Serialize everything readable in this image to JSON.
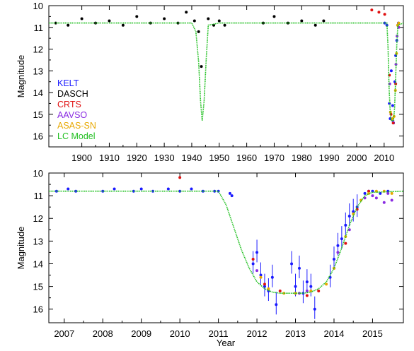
{
  "chart_data": [
    {
      "type": "scatter",
      "title": "",
      "xlabel": "",
      "ylabel": "Magnitude",
      "xlim": [
        1888,
        2017
      ],
      "ylim": [
        10,
        16.5
      ],
      "y_inverted": true,
      "xticks": [
        1900,
        1910,
        1920,
        1930,
        1940,
        1950,
        1960,
        1970,
        1980,
        1990,
        2000,
        2010
      ],
      "xtick_labels": [
        "1900",
        "1910",
        "1920",
        "1930",
        "1940",
        "1950",
        "1960",
        "1970",
        "1980",
        "1990",
        "2000",
        "2010"
      ],
      "yticks": [
        10,
        11,
        12,
        13,
        14,
        15,
        16
      ],
      "ytick_labels": [
        "10",
        "11",
        "12",
        "13",
        "14",
        "15",
        "16"
      ],
      "grid": false,
      "legend_position": "bottom-left",
      "series": [
        {
          "name": "KELT",
          "color": "#1a1aff",
          "points": [
            [
              2010.2,
              10.8
            ],
            [
              2011.0,
              10.9
            ],
            [
              2011.9,
              14.5
            ],
            [
              2012.2,
              15.2
            ],
            [
              2012.6,
              13.0
            ],
            [
              2013.1,
              14.6
            ],
            [
              2013.4,
              15.4
            ],
            [
              2013.9,
              13.5
            ],
            [
              2014.2,
              12.3
            ],
            [
              2014.6,
              11.6
            ],
            [
              2015.2,
              10.8
            ]
          ]
        },
        {
          "name": "DASCH",
          "color": "#000000",
          "points": [
            [
              1890.5,
              10.8
            ],
            [
              1895,
              10.9
            ],
            [
              1900,
              10.6
            ],
            [
              1905,
              10.8
            ],
            [
              1910,
              10.7
            ],
            [
              1915,
              10.9
            ],
            [
              1920,
              10.5
            ],
            [
              1925,
              10.8
            ],
            [
              1930,
              10.6
            ],
            [
              1935,
              10.8
            ],
            [
              1938,
              10.3
            ],
            [
              1941,
              10.7
            ],
            [
              1942.5,
              11.2
            ],
            [
              1943.5,
              12.8
            ],
            [
              1946,
              10.6
            ],
            [
              1948,
              10.9
            ],
            [
              1950,
              10.7
            ],
            [
              1952,
              10.9
            ],
            [
              1966,
              10.8
            ],
            [
              1970,
              10.5
            ],
            [
              1975,
              10.8
            ],
            [
              1980,
              10.7
            ],
            [
              1985,
              10.9
            ],
            [
              1988,
              10.7
            ]
          ]
        },
        {
          "name": "CRTS",
          "color": "#e01010",
          "points": [
            [
              2005.5,
              10.2
            ],
            [
              2008.1,
              10.3
            ],
            [
              2010.2,
              10.4
            ],
            [
              2011.9,
              13.2
            ],
            [
              2012.5,
              15.0
            ],
            [
              2013.3,
              15.4
            ],
            [
              2014.2,
              13.6
            ]
          ]
        },
        {
          "name": "AAVSO",
          "color": "#8a2be2",
          "points": [
            [
              2012.0,
              13.6
            ],
            [
              2013.2,
              15.3
            ],
            [
              2014.3,
              12.7
            ],
            [
              2014.7,
              11.4
            ],
            [
              2015.0,
              10.9
            ],
            [
              2015.3,
              11.0
            ]
          ]
        },
        {
          "name": "ASAS-SN",
          "color": "#e8a800",
          "points": [
            [
              2012.3,
              14.9
            ],
            [
              2013.0,
              15.2
            ],
            [
              2013.6,
              15.1
            ],
            [
              2014.1,
              13.9
            ],
            [
              2014.5,
              12.2
            ],
            [
              2014.9,
              10.9
            ],
            [
              2015.3,
              10.8
            ]
          ]
        },
        {
          "name": "LC Model",
          "color": "#22c022",
          "x": [
            1888,
            1940,
            1941.5,
            1942.5,
            1943.2,
            1943.8,
            1944.5,
            1945.3,
            1946,
            1950,
            2011,
            2011.4,
            2011.8,
            2012.2,
            2012.6,
            2013.0,
            2013.4,
            2013.8,
            2014.2,
            2014.6,
            2015.0,
            2017
          ],
          "y": [
            10.8,
            10.8,
            11.2,
            12.6,
            14.4,
            15.3,
            14.4,
            12.4,
            10.9,
            10.8,
            10.8,
            11.9,
            13.8,
            14.9,
            15.3,
            15.3,
            15.3,
            14.7,
            13.3,
            11.8,
            10.9,
            10.8
          ]
        }
      ]
    },
    {
      "type": "scatter",
      "title": "",
      "xlabel": "Year",
      "ylabel": "Magnitude",
      "xlim": [
        2006.6,
        2015.8
      ],
      "ylim": [
        10,
        16.6
      ],
      "y_inverted": true,
      "xticks": [
        2007,
        2008,
        2009,
        2010,
        2011,
        2012,
        2013,
        2014,
        2015
      ],
      "xtick_labels": [
        "2007",
        "2008",
        "2009",
        "2010",
        "2011",
        "2012",
        "2013",
        "2014",
        "2015"
      ],
      "yticks": [
        10,
        11,
        12,
        13,
        14,
        15,
        16
      ],
      "ytick_labels": [
        "10",
        "11",
        "12",
        "13",
        "14",
        "15",
        "16"
      ],
      "grid": false,
      "series": [
        {
          "name": "KELT",
          "color": "#1a1aff",
          "points": [
            [
              2006.8,
              10.8
            ],
            [
              2007.1,
              10.7
            ],
            [
              2007.3,
              10.8
            ],
            [
              2008.0,
              10.8
            ],
            [
              2008.3,
              10.7
            ],
            [
              2008.8,
              10.8
            ],
            [
              2009.0,
              10.7
            ],
            [
              2009.3,
              10.8
            ],
            [
              2009.7,
              10.7
            ],
            [
              2010.0,
              10.8
            ],
            [
              2010.3,
              10.7
            ],
            [
              2010.6,
              10.8
            ],
            [
              2010.9,
              10.8
            ],
            [
              2011.0,
              10.8
            ],
            [
              2011.3,
              10.9
            ],
            [
              2011.35,
              11.0
            ],
            [
              2011.9,
              14.0
            ],
            [
              2012.0,
              13.5
            ],
            [
              2012.1,
              14.5
            ],
            [
              2012.2,
              15.0
            ],
            [
              2012.3,
              15.2
            ],
            [
              2012.4,
              14.6
            ],
            [
              2012.5,
              15.8
            ],
            [
              2012.9,
              14.0
            ],
            [
              2013.0,
              15.0
            ],
            [
              2013.1,
              14.2
            ],
            [
              2013.2,
              15.3
            ],
            [
              2013.3,
              14.8
            ],
            [
              2013.4,
              15.0
            ],
            [
              2013.5,
              16.0
            ],
            [
              2013.9,
              14.6
            ],
            [
              2014.0,
              13.8
            ],
            [
              2014.1,
              13.2
            ],
            [
              2014.2,
              12.9
            ],
            [
              2014.3,
              12.3
            ],
            [
              2014.4,
              11.9
            ],
            [
              2014.5,
              11.7
            ],
            [
              2014.6,
              11.5
            ],
            [
              2014.8,
              10.9
            ],
            [
              2014.9,
              10.8
            ],
            [
              2015.0,
              10.8
            ],
            [
              2015.2,
              10.9
            ],
            [
              2015.4,
              10.8
            ]
          ]
        },
        {
          "name": "CRTS",
          "color": "#e01010",
          "points": [
            [
              2010.0,
              10.2
            ],
            [
              2011.9,
              13.8
            ],
            [
              2012.2,
              14.9
            ],
            [
              2012.6,
              15.2
            ],
            [
              2013.0,
              15.3
            ],
            [
              2013.3,
              15.4
            ],
            [
              2013.6,
              15.2
            ],
            [
              2014.0,
              14.2
            ],
            [
              2014.3,
              13.1
            ],
            [
              2014.6,
              11.6
            ],
            [
              2014.9,
              10.8
            ]
          ]
        },
        {
          "name": "AAVSO",
          "color": "#8a2be2",
          "points": [
            [
              2012.0,
              14.3
            ],
            [
              2013.1,
              15.3
            ],
            [
              2013.3,
              15.2
            ],
            [
              2014.1,
              13.5
            ],
            [
              2014.4,
              12.5
            ],
            [
              2014.8,
              11.1
            ],
            [
              2015.0,
              11.0
            ],
            [
              2015.1,
              11.1
            ],
            [
              2015.3,
              11.3
            ],
            [
              2015.4,
              10.9
            ],
            [
              2015.5,
              11.2
            ]
          ]
        },
        {
          "name": "ASAS-SN",
          "color": "#e8a800",
          "points": [
            [
              2012.1,
              14.6
            ],
            [
              2012.3,
              15.1
            ],
            [
              2012.7,
              15.3
            ],
            [
              2013.0,
              15.3
            ],
            [
              2013.4,
              15.2
            ],
            [
              2013.8,
              14.9
            ],
            [
              2014.0,
              14.2
            ],
            [
              2014.3,
              12.8
            ],
            [
              2014.5,
              11.8
            ],
            [
              2014.7,
              11.2
            ],
            [
              2014.9,
              10.9
            ],
            [
              2015.1,
              10.8
            ],
            [
              2015.3,
              10.8
            ],
            [
              2015.5,
              10.9
            ]
          ]
        },
        {
          "name": "LC Model",
          "color": "#22c022",
          "x": [
            2006.6,
            2011.0,
            2011.2,
            2011.4,
            2011.6,
            2011.8,
            2012.0,
            2012.2,
            2012.4,
            2012.6,
            2012.8,
            2013.0,
            2013.2,
            2013.4,
            2013.6,
            2013.8,
            2014.0,
            2014.2,
            2014.4,
            2014.6,
            2014.8,
            2015.0,
            2015.8
          ],
          "y": [
            10.8,
            10.8,
            11.4,
            12.4,
            13.4,
            14.2,
            14.8,
            15.1,
            15.25,
            15.3,
            15.3,
            15.3,
            15.3,
            15.25,
            15.1,
            14.8,
            14.2,
            13.3,
            12.3,
            11.5,
            11.0,
            10.85,
            10.8
          ]
        }
      ]
    }
  ]
}
